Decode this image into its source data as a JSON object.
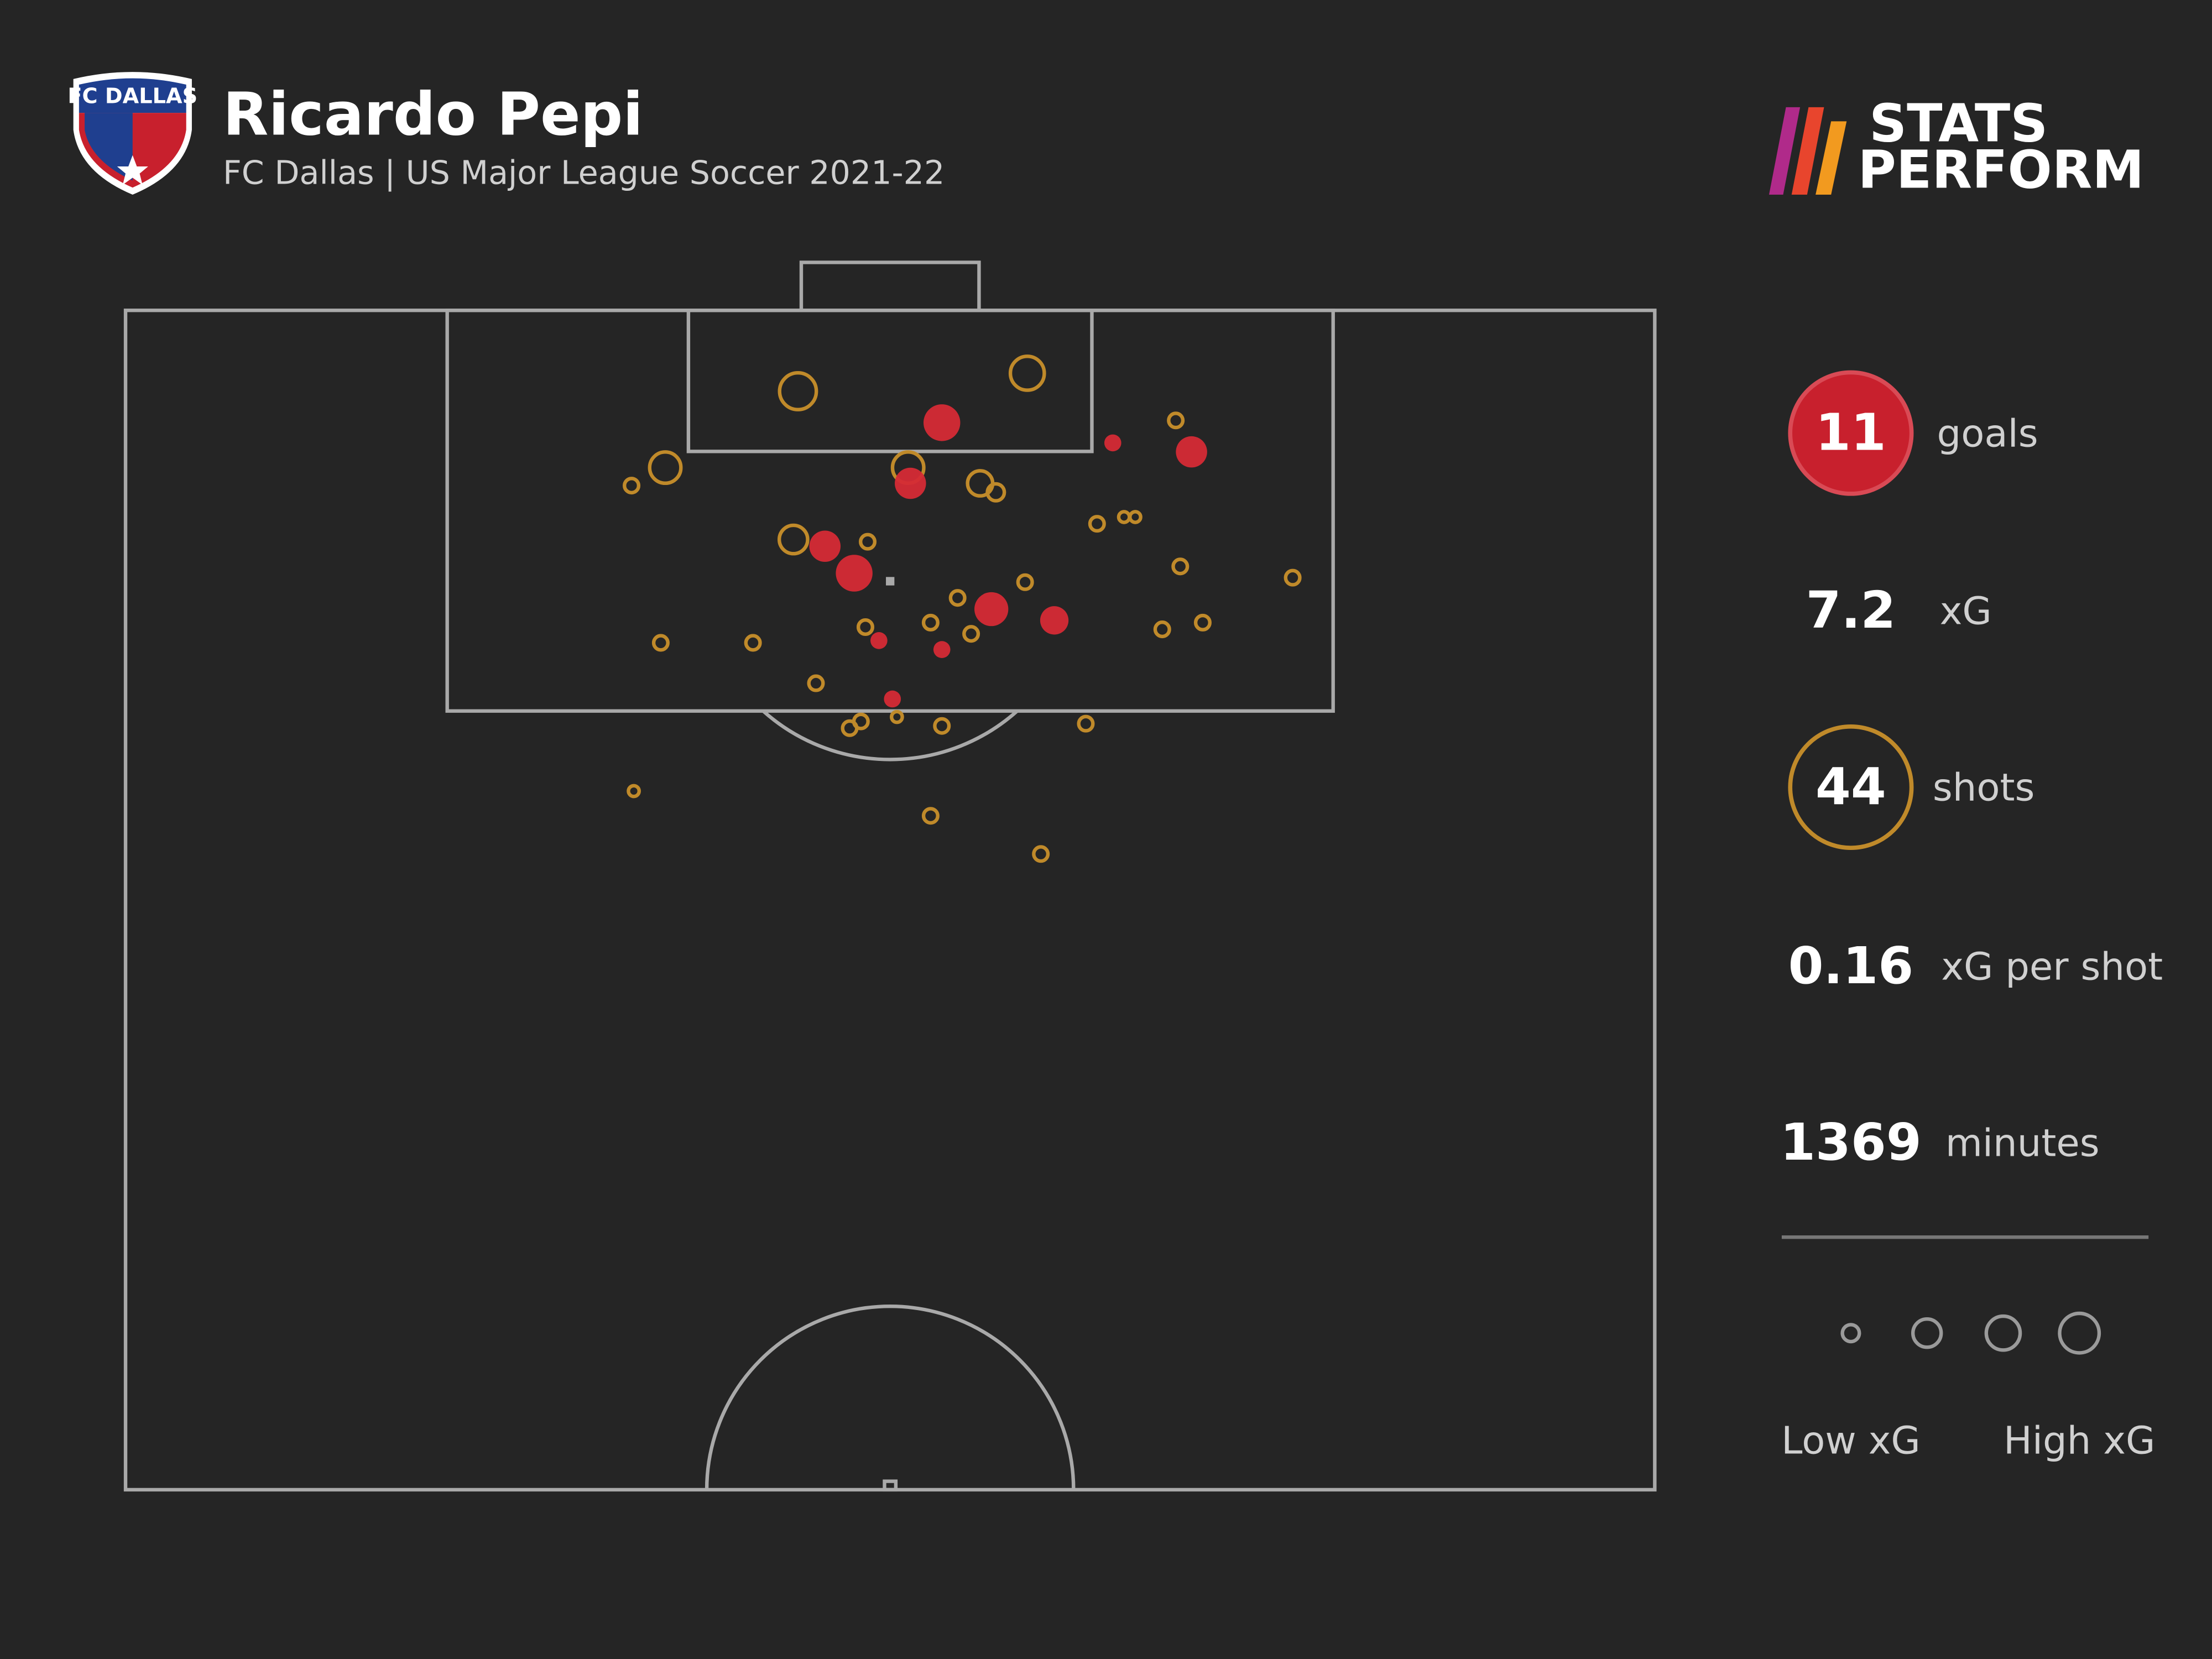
{
  "header": {
    "club_logo_text": "FC DALLAS",
    "brand_line1": "STATS",
    "brand_line2": "PERFORM"
  },
  "chart_data": {
    "type": "shot-map",
    "title": "Ricardo Pepi",
    "subtitle": "FC Dallas | US Major League Soccer 2021-22",
    "xlim": [
      0,
      68
    ],
    "ylim": [
      0,
      52.5
    ],
    "series": [
      {
        "color": "#d52a35",
        "filled": true,
        "x": [
          36.3,
          47.4,
          43.9,
          34.9,
          31.1,
          32.4,
          38.5,
          41.3,
          33.5,
          36.3,
          34.1
        ],
        "y": [
          5.0,
          6.3,
          5.9,
          7.7,
          10.5,
          11.7,
          13.3,
          13.8,
          14.7,
          15.1,
          17.3
        ],
        "xg": [
          0.47,
          0.34,
          0.1,
          0.34,
          0.34,
          0.47,
          0.4,
          0.28,
          0.1,
          0.1,
          0.1
        ]
      },
      {
        "color": "#c08a2a",
        "filled": false,
        "x": [
          29.9,
          40.1,
          46.7,
          24.0,
          22.5,
          34.8,
          38.0,
          38.7,
          43.2,
          44.4,
          44.9,
          29.7,
          33.0,
          46.9,
          51.9,
          40.0,
          37.0,
          35.8,
          32.9,
          37.6,
          46.1,
          47.9,
          23.8,
          27.9,
          30.7,
          32.7,
          32.2,
          34.3,
          36.3,
          42.7,
          22.6,
          35.8,
          40.7
        ],
        "y": [
          3.6,
          2.8,
          4.9,
          7.0,
          7.8,
          7.0,
          7.7,
          8.1,
          9.5,
          9.2,
          9.2,
          10.2,
          10.3,
          11.4,
          11.9,
          12.1,
          12.8,
          13.9,
          14.1,
          14.4,
          14.2,
          13.9,
          14.8,
          14.8,
          16.6,
          18.3,
          18.6,
          18.1,
          18.5,
          18.4,
          21.4,
          22.5,
          24.2
        ],
        "xg": [
          0.47,
          0.4,
          0.07,
          0.34,
          0.07,
          0.34,
          0.22,
          0.1,
          0.07,
          0.04,
          0.04,
          0.28,
          0.07,
          0.07,
          0.07,
          0.07,
          0.07,
          0.07,
          0.07,
          0.07,
          0.07,
          0.07,
          0.07,
          0.07,
          0.07,
          0.07,
          0.07,
          0.04,
          0.07,
          0.07,
          0.04,
          0.07,
          0.07
        ]
      }
    ],
    "stats": [
      {
        "value": 11,
        "label": "goals"
      },
      {
        "value": 7.2,
        "label": "xG"
      },
      {
        "value": 44,
        "label": "shots"
      },
      {
        "value": 0.16,
        "label": "xG per shot"
      },
      {
        "value": 1369,
        "label": "minutes"
      }
    ],
    "legend_low": "Low xG",
    "legend_high": "High xG"
  }
}
